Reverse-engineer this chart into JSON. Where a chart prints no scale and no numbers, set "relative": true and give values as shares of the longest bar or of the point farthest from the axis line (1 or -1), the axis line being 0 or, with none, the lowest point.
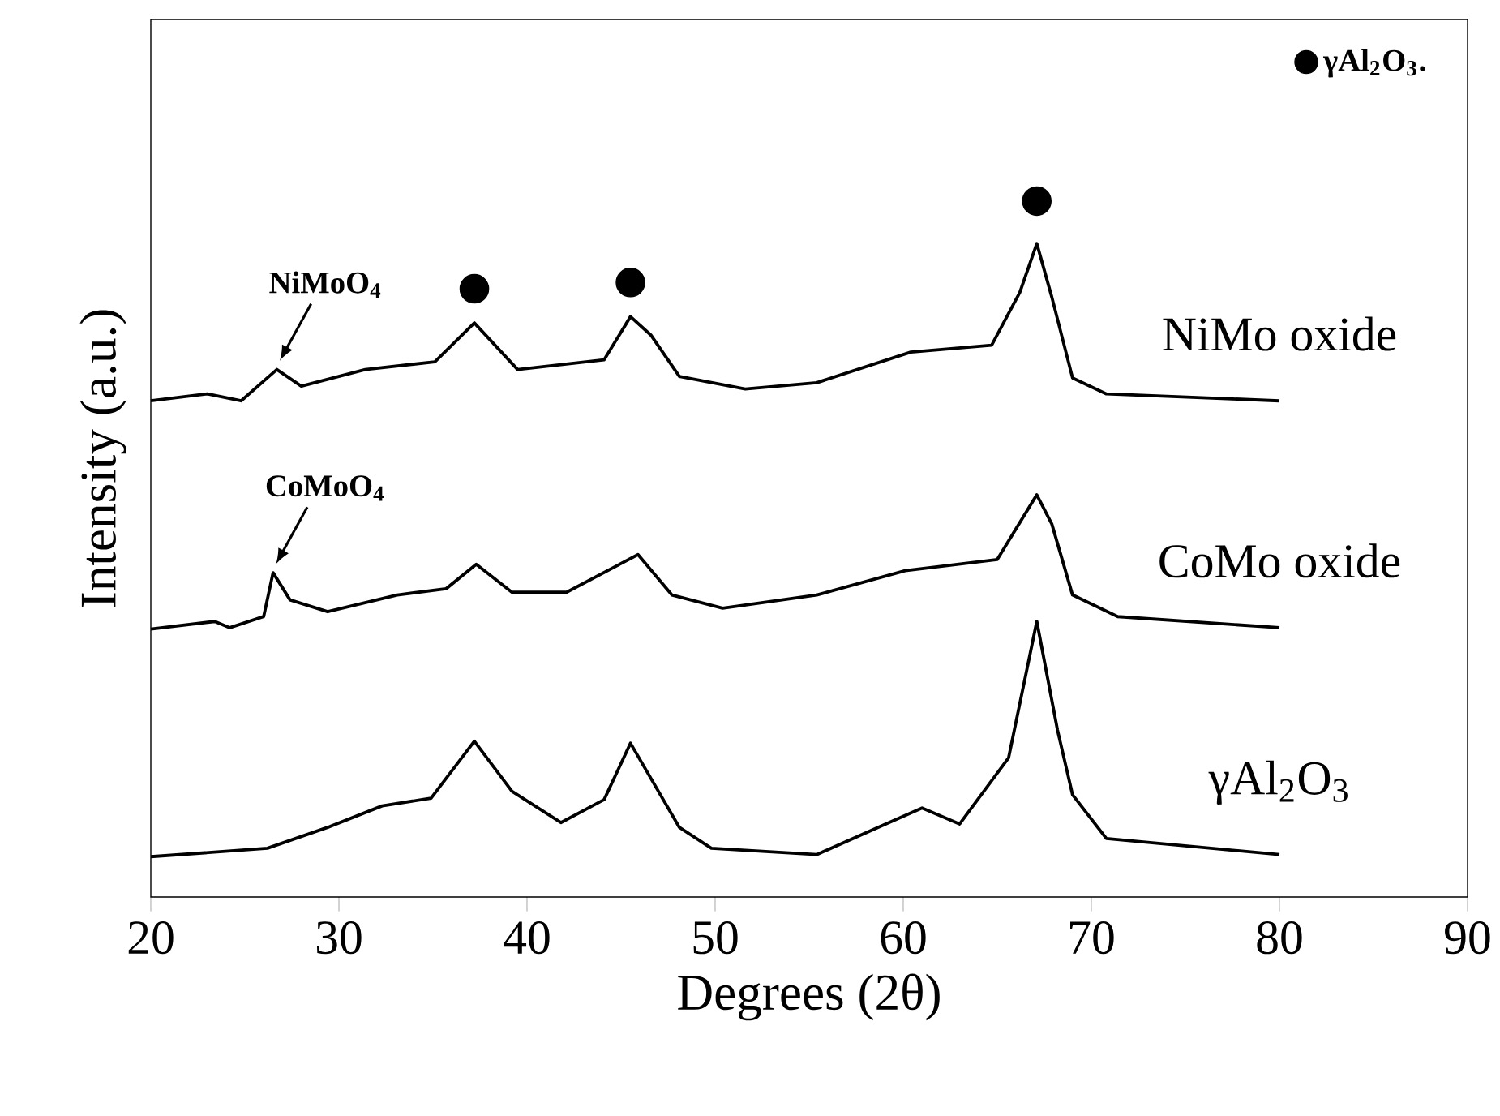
{
  "chart_data": {
    "type": "line",
    "relative": true,
    "xlabel": "Degrees (2θ)",
    "ylabel": "Intensity (a.u.)",
    "xlim": [
      20,
      90
    ],
    "xticks": [
      20,
      30,
      40,
      50,
      60,
      70,
      80,
      90
    ],
    "legend": "top right",
    "line_style": "solid",
    "series": [
      {
        "name": "NiMo oxide",
        "color": "#000000",
        "x": [
          20,
          23.0,
          24.8,
          26.7,
          28.0,
          31.4,
          35.1,
          37.2,
          39.5,
          44.1,
          45.5,
          46.6,
          48.1,
          51.6,
          55.4,
          60.4,
          64.7,
          66.2,
          67.1,
          67.9,
          69.0,
          70.8,
          80
        ],
        "values": [
          0.713,
          0.723,
          0.713,
          0.758,
          0.734,
          0.758,
          0.769,
          0.825,
          0.758,
          0.772,
          0.834,
          0.807,
          0.748,
          0.73,
          0.739,
          0.783,
          0.793,
          0.869,
          0.939,
          0.862,
          0.746,
          0.723,
          0.713
        ]
      },
      {
        "name": "CoMo oxide",
        "color": "#000000",
        "x": [
          20,
          23.4,
          24.2,
          26.0,
          26.5,
          27.4,
          29.4,
          33.1,
          35.7,
          37.3,
          39.2,
          42.1,
          45.9,
          47.7,
          50.4,
          55.4,
          60.1,
          65.0,
          67.1,
          67.9,
          69.0,
          71.4,
          80
        ],
        "values": [
          0.385,
          0.396,
          0.387,
          0.403,
          0.466,
          0.427,
          0.41,
          0.434,
          0.443,
          0.478,
          0.438,
          0.438,
          0.492,
          0.434,
          0.415,
          0.434,
          0.469,
          0.485,
          0.578,
          0.536,
          0.434,
          0.403,
          0.387
        ]
      },
      {
        "name": "γAl$_{2}$O$_{3}$",
        "color": "#000000",
        "x": [
          20,
          26.2,
          29.4,
          32.3,
          34.9,
          37.2,
          39.2,
          41.8,
          44.1,
          45.5,
          48.1,
          49.8,
          55.4,
          61.0,
          63.0,
          65.6,
          67.1,
          68.2,
          69.0,
          70.8,
          80
        ],
        "values": [
          0.058,
          0.07,
          0.1,
          0.131,
          0.142,
          0.224,
          0.152,
          0.107,
          0.14,
          0.221,
          0.1,
          0.07,
          0.061,
          0.128,
          0.105,
          0.2,
          0.396,
          0.24,
          0.147,
          0.084,
          0.061
        ]
      },
      {
        "name": "γAl$_{2}$O$_{3}$.",
        "type": "scatter",
        "marker": "circle",
        "color": "#000000",
        "x": [
          37.2,
          45.5,
          67.1
        ],
        "values": [
          0.874,
          0.883,
          1.0
        ]
      }
    ],
    "annotations": [
      {
        "text": "NiMoO$_{4}$",
        "x": 26.7,
        "y": 0.758
      },
      {
        "text": "CoMoO$_{4}$",
        "x": 26.5,
        "y": 0.466
      }
    ]
  }
}
